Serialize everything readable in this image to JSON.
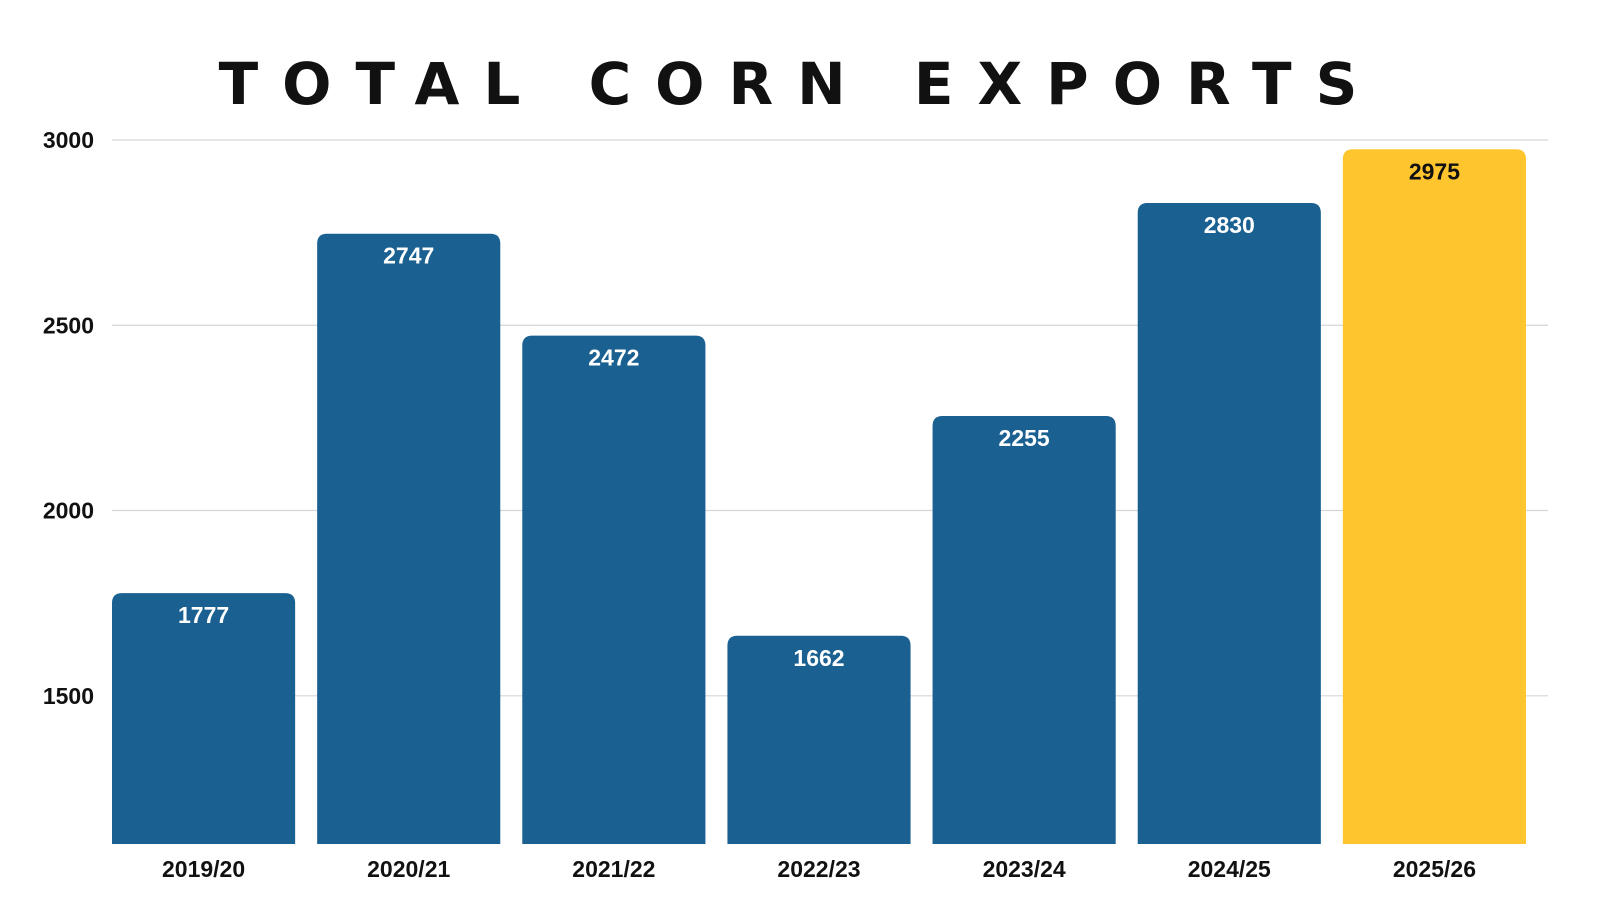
{
  "chart_data": {
    "type": "bar",
    "title": "TOTAL CORN EXPORTS",
    "xlabel": "",
    "ylabel": "",
    "categories": [
      "2019/20",
      "2020/21",
      "2021/22",
      "2022/23",
      "2023/24",
      "2024/25",
      "2025/26"
    ],
    "values": [
      1777,
      2747,
      2472,
      1662,
      2255,
      2830,
      2975
    ],
    "value_labels": [
      "1777",
      "2747",
      "2472",
      "1662",
      "2255",
      "2830",
      "2975"
    ],
    "y_ticks": [
      "1500",
      "2000",
      "2500",
      "3000"
    ],
    "ylim": [
      1100,
      3000
    ],
    "grid": true,
    "legend": "none",
    "colors": {
      "bar": "#1a6090",
      "highlight_bar": "#fec52e",
      "label_on_bar": "#ffffff",
      "label_on_highlight": "#111111"
    },
    "highlight_index": 6
  }
}
